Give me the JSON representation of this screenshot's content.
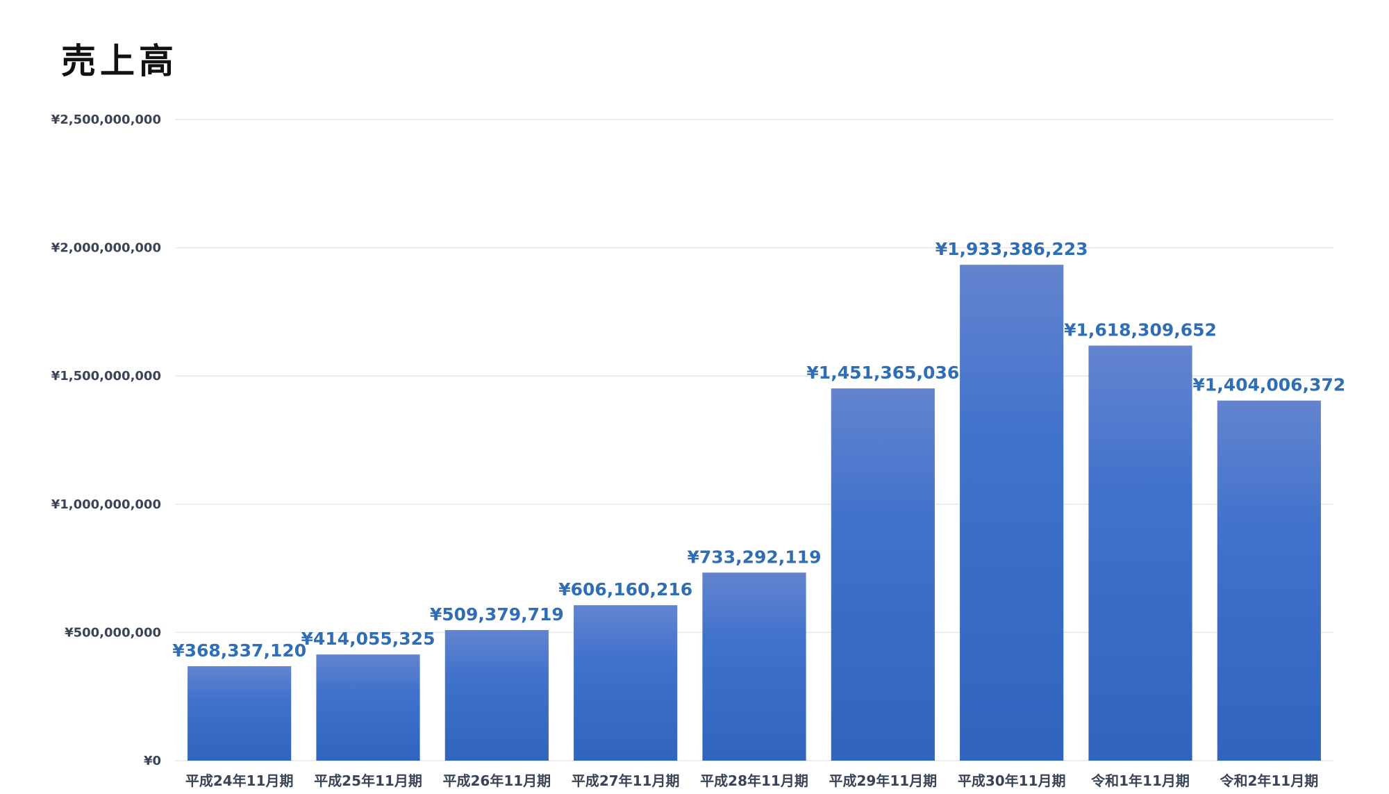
{
  "chart_data": {
    "type": "bar",
    "title": "売上高",
    "categories": [
      "平成24年11月期",
      "平成25年11月期",
      "平成26年11月期",
      "平成27年11月期",
      "平成28年11月期",
      "平成29年11月期",
      "平成30年11月期",
      "令和1年11月期",
      "令和2年11月期"
    ],
    "values": [
      368337120,
      414055325,
      509379719,
      606160216,
      733292119,
      1451365036,
      1933386223,
      1618309652,
      1404006372
    ],
    "data_labels": [
      "¥368,337,120",
      "¥414,055,325",
      "¥509,379,719",
      "¥606,160,216",
      "¥733,292,119",
      "¥1,451,365,036",
      "¥1,933,386,223",
      "¥1,618,309,652",
      "¥1,404,006,372"
    ],
    "yticks": [
      0,
      500000000,
      1000000000,
      1500000000,
      2000000000,
      2500000000
    ],
    "ytick_labels": [
      "¥0",
      "¥500,000,000",
      "¥1,000,000,000",
      "¥1,500,000,000",
      "¥2,000,000,000",
      "¥2,500,000,000"
    ],
    "ylim": [
      0,
      2500000000
    ],
    "xlabel": "",
    "ylabel": "",
    "grid": true,
    "legend": "none",
    "colors": {
      "bar_top": "#6384cf",
      "bar_mid": "#4172cc",
      "bar_bottom": "#3064bd",
      "label": "#2f6db5",
      "grid": "#e6e6e6"
    }
  }
}
